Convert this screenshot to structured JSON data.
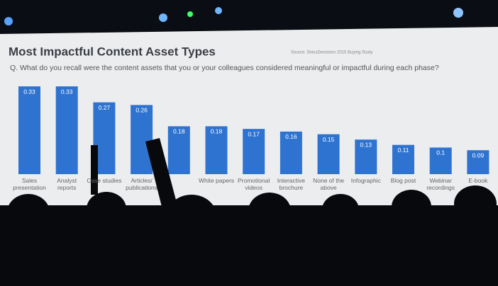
{
  "chart_data": {
    "type": "bar",
    "title": "Most Impactful Content Asset Types",
    "source": "Source: SiriusDecisions 2015 Buying Study",
    "subtitle": "Q. What do you recall were the content assets that you or your colleagues considered meaningful or impactful during each phase?",
    "categories": [
      "Sales presentation",
      "Analyst reports",
      "Case studies",
      "Articles/ publications",
      null,
      "White papers",
      "Promotional videos",
      "Interactive brochure",
      "None of the above",
      "Infographic",
      "Blog post",
      "Webinar recordings",
      "E-book"
    ],
    "values": [
      0.33,
      0.33,
      0.27,
      0.26,
      0.18,
      0.18,
      0.17,
      0.16,
      0.15,
      0.13,
      0.11,
      0.1,
      0.09
    ],
    "color": "#2f73d0"
  }
}
